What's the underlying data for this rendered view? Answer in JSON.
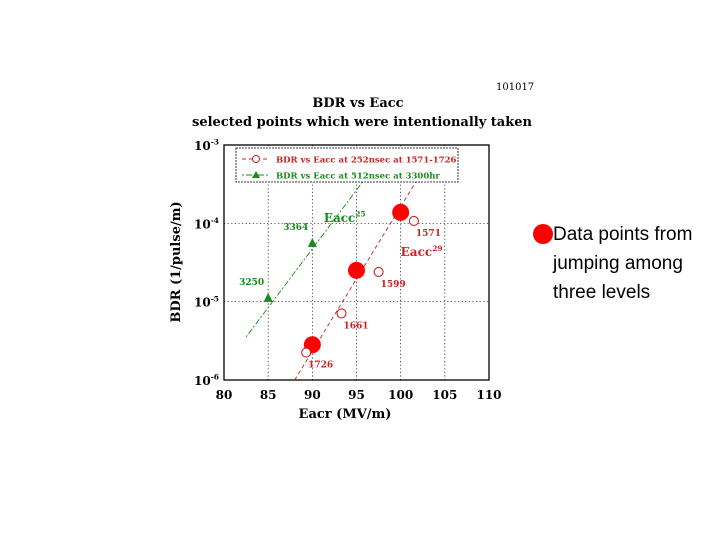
{
  "chart_data": {
    "type": "scatter",
    "id_label": "101017",
    "title": "BDR vs Eacc",
    "subtitle": "selected points which were intentionally taken",
    "xlabel": "Eacr (MV/m)",
    "ylabel": "BDR (1/pulse/m)",
    "x_ticks": [
      "80",
      "85",
      "90",
      "95",
      "100",
      "105",
      "110"
    ],
    "x_tick_values": [
      80,
      85,
      90,
      95,
      100,
      105,
      110
    ],
    "y_ticks": [
      {
        "value": -3,
        "base": "10",
        "exp": "-3"
      },
      {
        "value": -4,
        "base": "10",
        "exp": "-4"
      },
      {
        "value": -5,
        "base": "10",
        "exp": "-5"
      },
      {
        "value": -6,
        "base": "10",
        "exp": "-6"
      }
    ],
    "xlim": [
      80,
      110
    ],
    "ylim_log10": [
      -6,
      -3
    ],
    "y_scale": "log",
    "grid": true,
    "legend_position": "top-left",
    "series": [
      {
        "name": "BDR vs Eacc at 252nsec at 1571-1726",
        "marker": "open-circle",
        "color": "#cc2222",
        "points": [
          {
            "x": 89.3,
            "y_log10": -5.65,
            "label": "1726"
          },
          {
            "x": 93.3,
            "y_log10": -5.15,
            "label": "1661"
          },
          {
            "x": 97.5,
            "y_log10": -4.62,
            "label": "1599"
          },
          {
            "x": 101.5,
            "y_log10": -3.97,
            "label": "1571"
          }
        ],
        "fit": {
          "x": [
            88,
            104
          ],
          "y_log10": [
            -6.0,
            -3.05
          ]
        }
      },
      {
        "name": "BDR vs Eacc at 512nsec at 3300hr",
        "marker": "filled-triangle",
        "color": "#1a8a1a",
        "points": [
          {
            "x": 85.0,
            "y_log10": -4.95,
            "label": "3250"
          },
          {
            "x": 90.0,
            "y_log10": -4.25,
            "label": "3364"
          }
        ],
        "fit": {
          "x": [
            82.5,
            97.5
          ],
          "y_log10": [
            -5.45,
            -3.2
          ]
        }
      }
    ],
    "highlight_points": [
      {
        "x": 90.0,
        "y_log10": -5.55
      },
      {
        "x": 95.0,
        "y_log10": -4.6
      },
      {
        "x": 100.0,
        "y_log10": -3.86
      }
    ],
    "highlight_color": "#ff0000",
    "annotations": [
      {
        "base": "Eacc",
        "exp": "25",
        "x": 91.3,
        "y_log10": -3.98,
        "color": "#1a8a1a"
      },
      {
        "base": "Eacc",
        "exp": "29",
        "x": 100.0,
        "y_log10": -4.42,
        "color": "#cc2222"
      }
    ]
  },
  "callout": {
    "text": "Data points from jumping among three levels",
    "bullet_color": "#ff0000"
  }
}
